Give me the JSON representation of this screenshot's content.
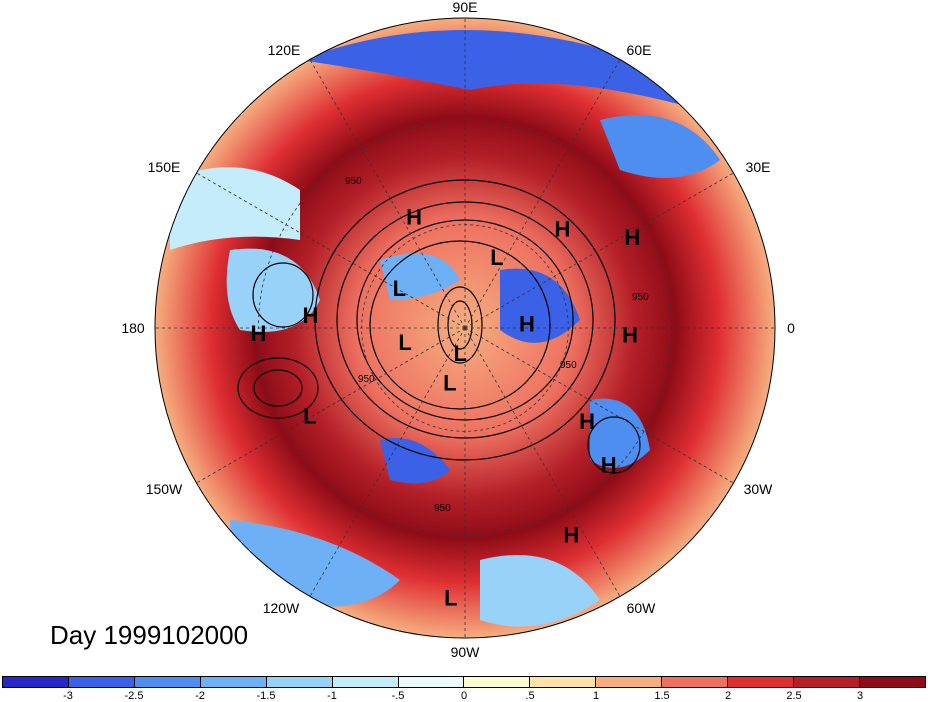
{
  "title": "Day 1999102000",
  "longitude_labels": [
    "90E",
    "60E",
    "30E",
    "0",
    "30W",
    "60W",
    "90W",
    "120W",
    "150W",
    "180",
    "150E",
    "120E"
  ],
  "centers": [
    {
      "type": "H",
      "lat": 55,
      "lon": 115
    },
    {
      "type": "H",
      "lat": 50,
      "lon": 45
    },
    {
      "type": "H",
      "lat": 35,
      "lon": 28
    },
    {
      "type": "H",
      "lat": 45,
      "lon": 176
    },
    {
      "type": "H",
      "lat": 30,
      "lon": -178
    },
    {
      "type": "H",
      "lat": 72,
      "lon": 2
    },
    {
      "type": "H",
      "lat": 42,
      "lon": -3
    },
    {
      "type": "H",
      "lat": 45,
      "lon": -38
    },
    {
      "type": "H",
      "lat": 32,
      "lon": -44
    },
    {
      "type": "H",
      "lat": 22,
      "lon": -63
    },
    {
      "type": "L",
      "lat": 68,
      "lon": 150
    },
    {
      "type": "L",
      "lat": 68,
      "lon": 65
    },
    {
      "type": "L",
      "lat": 82,
      "lon": -100
    },
    {
      "type": "L",
      "lat": 72,
      "lon": -165
    },
    {
      "type": "L",
      "lat": 73,
      "lon": -105
    },
    {
      "type": "L",
      "lat": 38,
      "lon": -150
    },
    {
      "type": "L",
      "lat": 11,
      "lon": -93
    }
  ],
  "contour_labels": [
    "950",
    "950",
    "950",
    "950",
    "950"
  ],
  "colorbar": {
    "ticks": [
      "-3",
      "-2.5",
      "-2",
      "-1.5",
      "-1",
      "-.5",
      "0",
      ".5",
      "1",
      "1.5",
      "2",
      "2.5",
      "3"
    ],
    "colors": [
      "#2626ca",
      "#3b62e6",
      "#4d8ef0",
      "#6eb0f5",
      "#98d2f8",
      "#c4ecfb",
      "#eafafd",
      "#fffad2",
      "#fde3a7",
      "#f6ae80",
      "#ee7060",
      "#de2e32",
      "#b41f28",
      "#8e0c17"
    ]
  }
}
